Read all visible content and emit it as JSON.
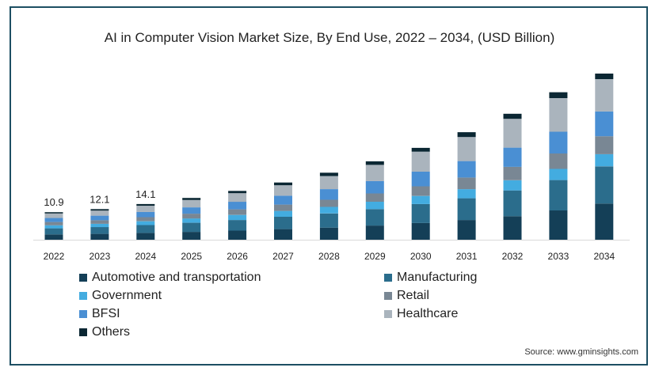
{
  "chart_data": {
    "type": "bar",
    "stacked": true,
    "title": "AI in Computer Vision Market Size, By End Use, 2022 – 2034, (USD Billion)",
    "xlabel": "",
    "ylabel": "",
    "ylim": [
      0,
      66
    ],
    "grid": false,
    "legend_position": "bottom",
    "categories": [
      "2022",
      "2023",
      "2024",
      "2025",
      "2026",
      "2027",
      "2028",
      "2029",
      "2030",
      "2031",
      "2032",
      "2033",
      "2034"
    ],
    "totals": [
      10.9,
      12.1,
      14.1,
      16.5,
      19.3,
      22.6,
      26.5,
      31.0,
      36.3,
      42.5,
      49.8,
      58.3,
      65.7
    ],
    "total_labels": [
      "10.9",
      "12.1",
      "14.1",
      "",
      "",
      "",
      "",
      "",
      "",
      "",
      "",
      "",
      ""
    ],
    "series": [
      {
        "name": "Automotive and transportation",
        "color": "#143f57",
        "values": [
          2.1,
          2.3,
          2.7,
          3.1,
          3.6,
          4.2,
          4.8,
          5.6,
          6.6,
          7.8,
          9.3,
          11.6,
          14.3
        ]
      },
      {
        "name": "Manufacturing",
        "color": "#2b6d8c",
        "values": [
          2.4,
          2.7,
          3.1,
          3.6,
          4.2,
          4.9,
          5.6,
          6.5,
          7.5,
          8.6,
          10.2,
          12.0,
          14.7
        ]
      },
      {
        "name": "Government",
        "color": "#43ace0",
        "values": [
          1.2,
          1.3,
          1.5,
          1.7,
          2.0,
          2.3,
          2.6,
          2.9,
          3.2,
          3.6,
          4.0,
          4.4,
          4.8
        ]
      },
      {
        "name": "Retail",
        "color": "#798794",
        "values": [
          1.3,
          1.4,
          1.6,
          1.9,
          2.2,
          2.5,
          2.8,
          3.3,
          3.8,
          4.6,
          5.3,
          6.1,
          7.1
        ]
      },
      {
        "name": "BFSI",
        "color": "#4a8fd3",
        "values": [
          1.6,
          1.8,
          2.1,
          2.5,
          3.0,
          3.5,
          4.2,
          4.9,
          5.8,
          6.5,
          7.6,
          8.6,
          9.8
        ]
      },
      {
        "name": "Healthcare",
        "color": "#aab4bd",
        "values": [
          1.8,
          2.0,
          2.4,
          2.9,
          3.4,
          4.1,
          5.2,
          6.4,
          7.9,
          9.5,
          11.4,
          13.3,
          12.8
        ]
      },
      {
        "name": "Others",
        "color": "#0b2733",
        "values": [
          0.5,
          0.6,
          0.7,
          0.8,
          0.9,
          1.1,
          1.3,
          1.4,
          1.5,
          1.9,
          2.0,
          2.3,
          2.2
        ]
      }
    ]
  },
  "source": "Source: www.gminsights.com"
}
